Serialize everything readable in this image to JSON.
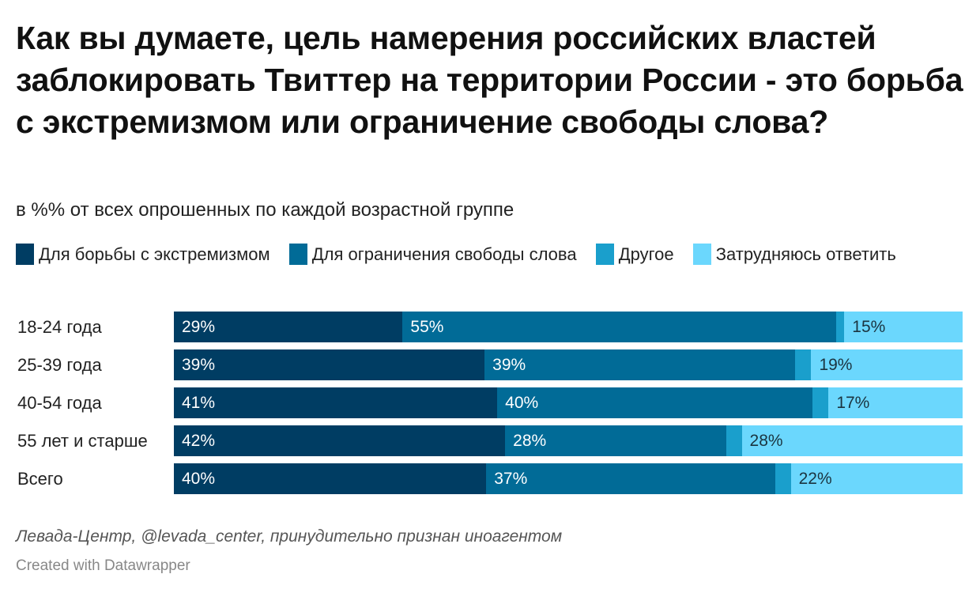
{
  "chart_data": {
    "type": "bar",
    "orientation": "horizontal-stacked",
    "title": "Как вы думаете, цель намерения российских властей заблокировать Твиттер на территории России - это борьба с экстремизмом или ограничение свободы слова?",
    "subtitle": "в %% от всех опрошенных по каждой возрастной группе",
    "categories": [
      "18-24 года",
      "25-39 года",
      "40-54 года",
      "55 лет и старше",
      "Всего"
    ],
    "series": [
      {
        "name": "Для борьбы с экстремизмом",
        "color": "#003d63",
        "label_color": "#ffffff",
        "labels": [
          "29%",
          "39%",
          "41%",
          "42%",
          "40%"
        ],
        "values": [
          29,
          39,
          41,
          42,
          40
        ]
      },
      {
        "name": "Для ограничения свободы слова",
        "color": "#016b97",
        "label_color": "#ffffff",
        "labels": [
          "55%",
          "39%",
          "40%",
          "28%",
          "37%"
        ],
        "values": [
          55,
          39,
          40,
          28,
          37
        ]
      },
      {
        "name": "Другое",
        "color": "#1a9fcc",
        "label_color": "#ffffff",
        "labels": [
          "",
          "",
          "",
          "",
          ""
        ],
        "values": [
          1,
          2,
          2,
          2,
          2
        ]
      },
      {
        "name": "Затрудняюсь ответить",
        "color": "#6bd7fd",
        "label_color": "#1b3440",
        "labels": [
          "15%",
          "19%",
          "17%",
          "28%",
          "22%"
        ],
        "values": [
          15,
          19,
          17,
          28,
          22
        ]
      }
    ],
    "xlim": [
      0,
      100
    ],
    "unit": "%",
    "legend": "top",
    "grid": false
  },
  "source": "Левада-Центр, @levada_center, принудительно признан иноагентом",
  "credit": "Created with Datawrapper"
}
